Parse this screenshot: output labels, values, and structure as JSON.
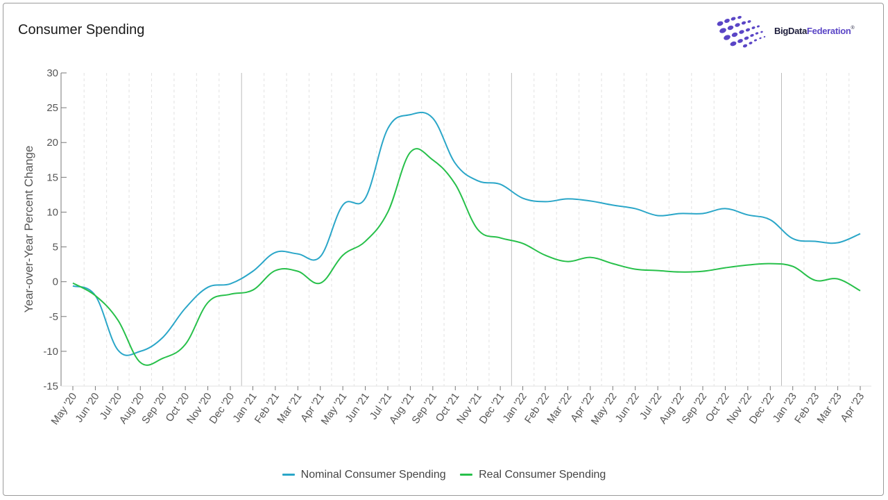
{
  "title": "Consumer Spending",
  "logo": {
    "part1": "BigData",
    "part2": "Federation",
    "mark": "®"
  },
  "colors": {
    "nominal": "#2aa6c8",
    "real": "#27c04a",
    "grid": "#e2e2e2",
    "year_line": "#bdbdbd",
    "axis": "#777777"
  },
  "chart_data": {
    "type": "line",
    "title": "Consumer Spending",
    "xlabel": "",
    "ylabel": "Year-over-Year Percent Change",
    "ylim": [
      -15,
      30
    ],
    "yticks": [
      -15,
      -10,
      -5,
      0,
      5,
      10,
      15,
      20,
      25,
      30
    ],
    "grid": true,
    "legend": "bottom-center",
    "categories": [
      "May '20",
      "Jun '20",
      "Jul '20",
      "Aug '20",
      "Sep '20",
      "Oct '20",
      "Nov '20",
      "Dec '20",
      "Jan '21",
      "Feb '21",
      "Mar '21",
      "Apr '21",
      "May '21",
      "Jun '21",
      "Jul '21",
      "Aug '21",
      "Sep '21",
      "Oct '21",
      "Nov '21",
      "Dec '21",
      "Jan '22",
      "Feb '22",
      "Mar '22",
      "Apr '22",
      "May '22",
      "Jun '22",
      "Jul '22",
      "Aug '22",
      "Sep '22",
      "Oct '22",
      "Nov '22",
      "Dec '22",
      "Jan '23",
      "Feb '23",
      "Mar '23",
      "Apr '23"
    ],
    "series": [
      {
        "name": "Nominal Consumer Spending",
        "values": [
          -0.6,
          -2.0,
          -9.8,
          -10.0,
          -8.0,
          -3.8,
          -0.8,
          -0.3,
          1.5,
          4.2,
          4.0,
          3.6,
          11.0,
          12.0,
          22.0,
          24.0,
          23.5,
          17.0,
          14.5,
          14.0,
          12.0,
          11.5,
          11.9,
          11.6,
          11.0,
          10.5,
          9.5,
          9.8,
          9.8,
          10.5,
          9.6,
          8.9,
          6.2,
          5.8,
          5.6,
          6.9
        ]
      },
      {
        "name": "Real Consumer Spending",
        "values": [
          -0.2,
          -2.0,
          -5.5,
          -11.6,
          -11.0,
          -9.0,
          -3.0,
          -1.8,
          -1.2,
          1.6,
          1.5,
          -0.2,
          3.8,
          5.8,
          10.0,
          18.6,
          17.5,
          14.0,
          7.5,
          6.3,
          5.5,
          3.8,
          2.9,
          3.5,
          2.6,
          1.8,
          1.6,
          1.4,
          1.5,
          2.0,
          2.4,
          2.6,
          2.2,
          0.2,
          0.4,
          -1.3
        ]
      }
    ]
  }
}
